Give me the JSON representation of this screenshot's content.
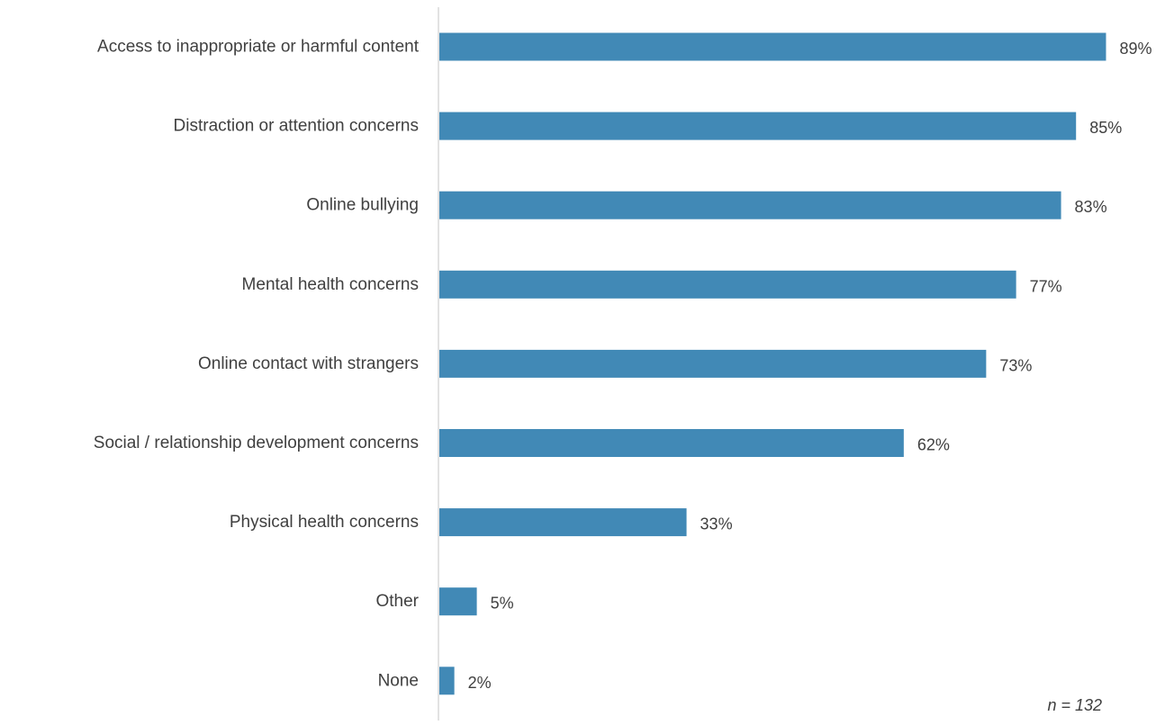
{
  "chart_data": {
    "type": "bar",
    "orientation": "horizontal",
    "categories": [
      "Access to inappropriate or harmful content",
      "Distraction or attention concerns",
      "Online bullying",
      "Mental health concerns",
      "Online contact with strangers",
      "Social / relationship development concerns",
      "Physical health concerns",
      "Other",
      "None"
    ],
    "values": [
      89,
      85,
      83,
      77,
      73,
      62,
      33,
      5,
      2
    ],
    "value_labels": [
      "89%",
      "85%",
      "83%",
      "77%",
      "73%",
      "62%",
      "33%",
      "5%",
      "2%"
    ],
    "unit": "%",
    "xlim": [
      0,
      100
    ],
    "grid": false,
    "legend": "none",
    "note": "n = 132"
  },
  "colors": {
    "bar": "#4189B6",
    "axis": "#D9D9D9",
    "text": "#404040"
  }
}
